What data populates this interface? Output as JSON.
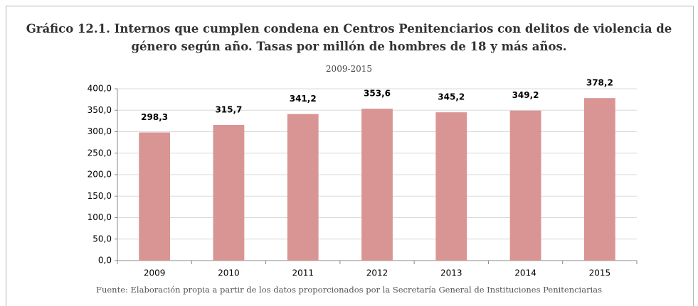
{
  "chart_data": {
    "type": "bar",
    "title": "Gráfico 12.1. Internos que cumplen condena en Centros Penitenciarios con delitos de violencia de género según año. Tasas por millón de hombres de 18 y más años.",
    "subtitle": "2009-2015",
    "source": "Fuente: Elaboración propia a partir de los datos proporcionados por la Secretaría General de Instituciones Penitenciarias",
    "categories": [
      "2009",
      "2010",
      "2011",
      "2012",
      "2013",
      "2014",
      "2015"
    ],
    "values": [
      298.3,
      315.7,
      341.2,
      353.6,
      345.2,
      349.2,
      378.2
    ],
    "value_labels": [
      "298,3",
      "315,7",
      "341,2",
      "353,6",
      "345,2",
      "349,2",
      "378,2"
    ],
    "color": "#d99594",
    "ylim": [
      0,
      400
    ],
    "yticks": [
      {
        "value": 0,
        "label": "0,0"
      },
      {
        "value": 50,
        "label": "50,0"
      },
      {
        "value": 100,
        "label": "100,0"
      },
      {
        "value": 150,
        "label": "150,0"
      },
      {
        "value": 200,
        "label": "200,0"
      },
      {
        "value": 250,
        "label": "250,0"
      },
      {
        "value": 300,
        "label": "300,0"
      },
      {
        "value": 350,
        "label": "350,0"
      },
      {
        "value": 400,
        "label": "400,0"
      }
    ],
    "grid": true
  }
}
